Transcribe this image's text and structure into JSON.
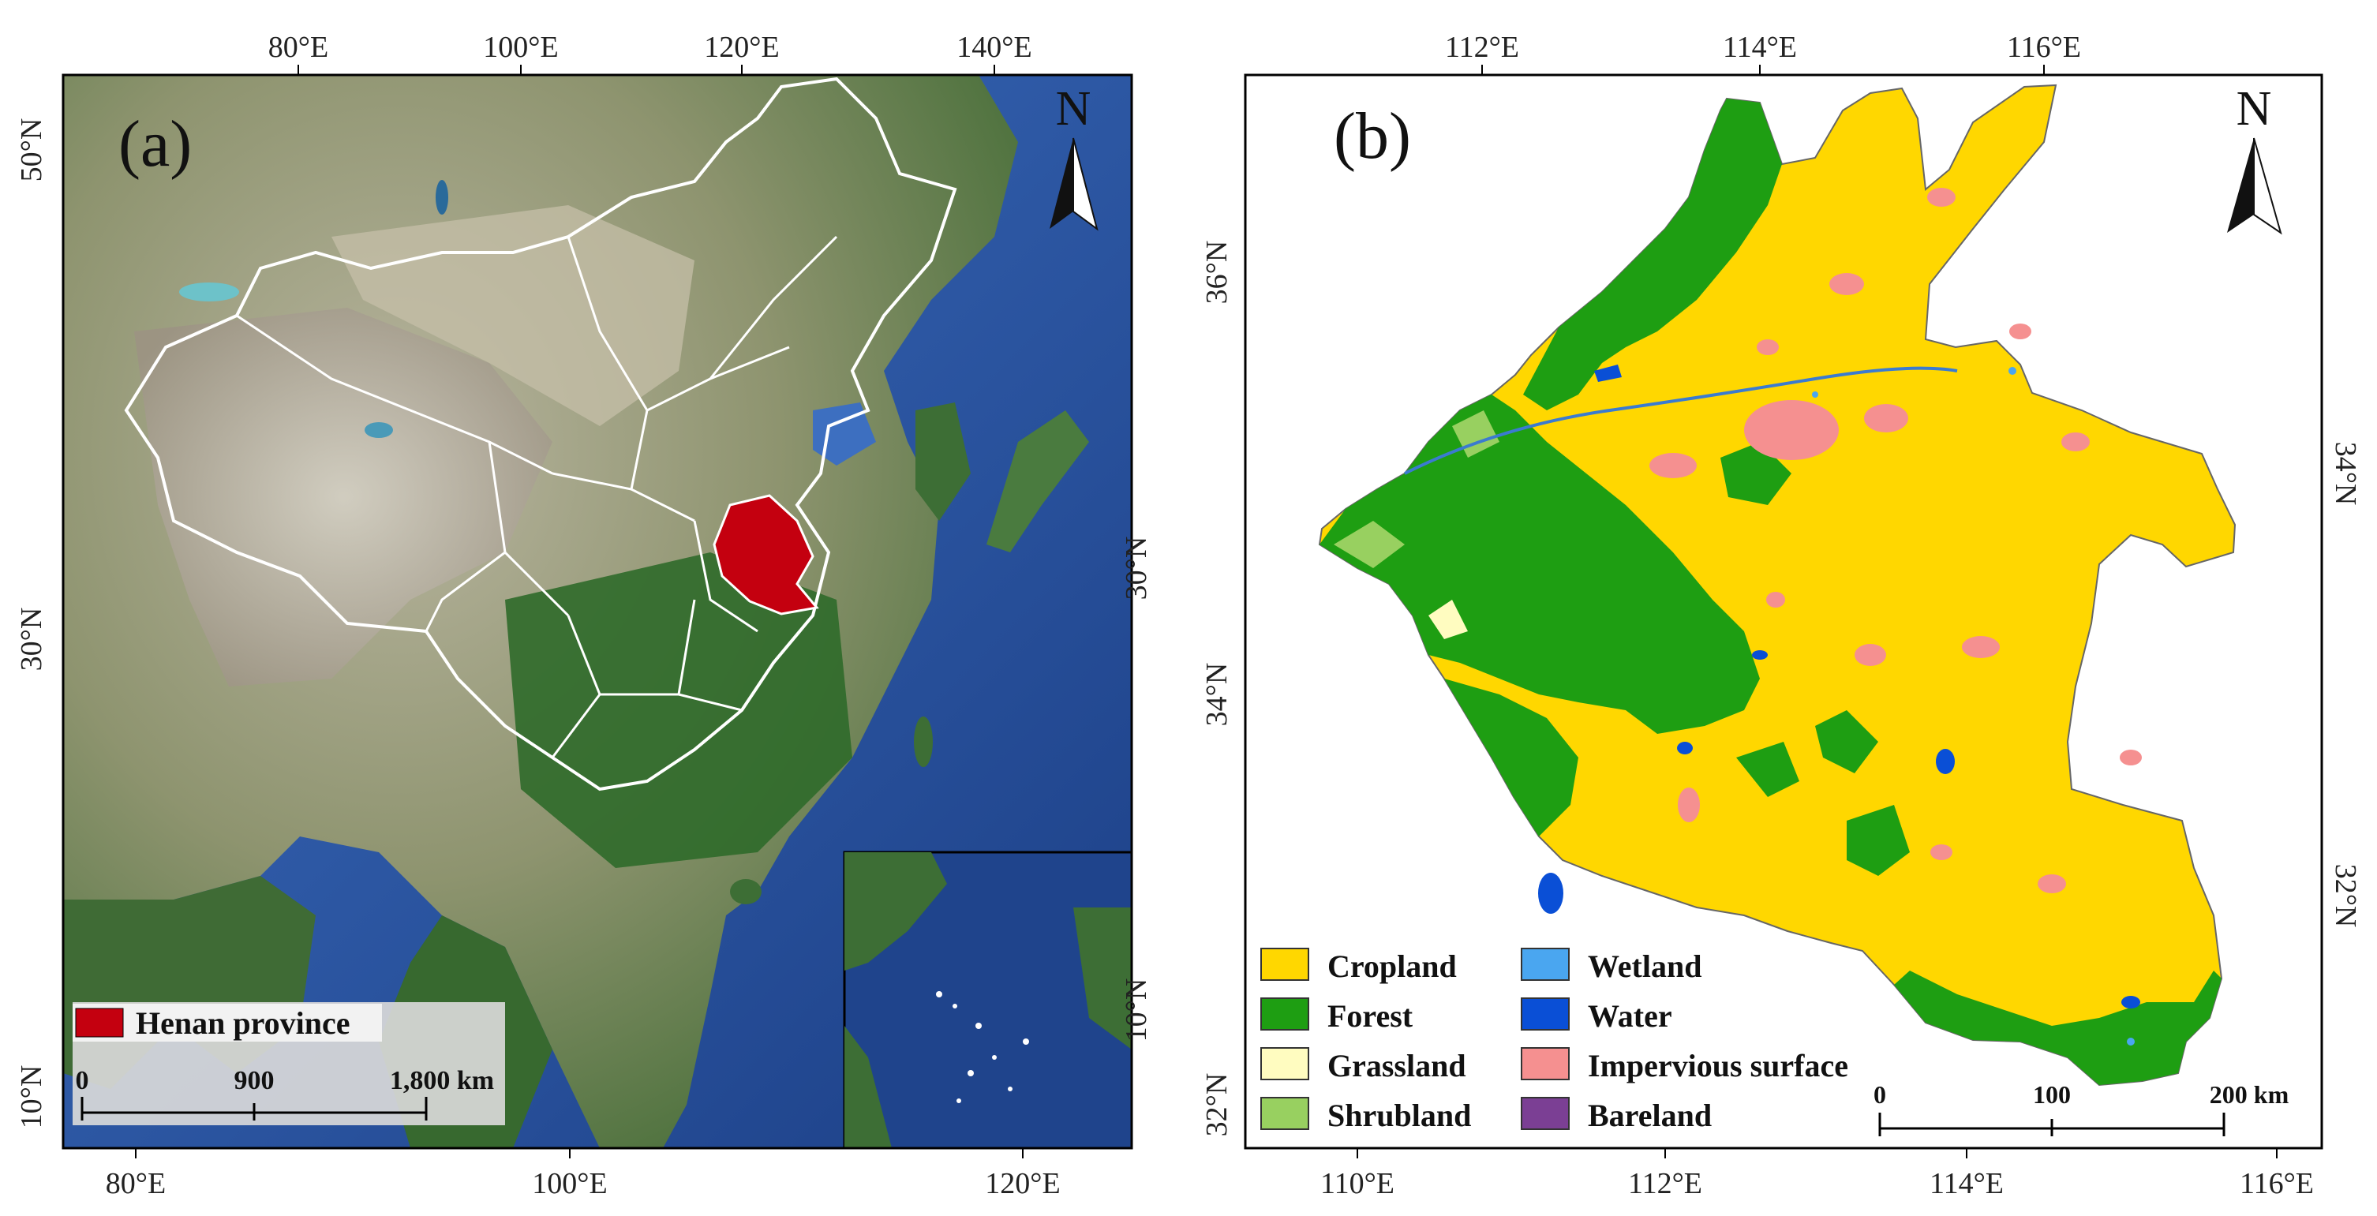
{
  "panel_a": {
    "label": "(a)",
    "north": "N",
    "top_ticks": [
      "80°E",
      "100°E",
      "120°E",
      "140°E"
    ],
    "bottom_ticks": [
      "80°E",
      "100°E",
      "120°E"
    ],
    "left_ticks": [
      "50°N",
      "30°N",
      "10°N"
    ],
    "inner_ticks": [
      "30°N",
      "10°N"
    ],
    "legend": {
      "label": "Henan province",
      "color": "#c4000f"
    },
    "scalebar": {
      "ticks": [
        "0",
        "900",
        "1,800 km"
      ]
    }
  },
  "panel_b": {
    "label": "(b)",
    "north": "N",
    "top_ticks": [
      "112°E",
      "114°E",
      "116°E"
    ],
    "bottom_ticks": [
      "110°E",
      "112°E",
      "114°E",
      "116°E"
    ],
    "left_ticks": [
      "36°N",
      "34°N",
      "32°N"
    ],
    "right_ticks": [
      "34°N",
      "32°N"
    ],
    "legend": [
      {
        "label": "Cropland",
        "color": "#ffd700"
      },
      {
        "label": "Wetland",
        "color": "#4aa6f0"
      },
      {
        "label": "Forest",
        "color": "#1e9e12"
      },
      {
        "label": "Water",
        "color": "#0a4fd6"
      },
      {
        "label": "Grassland",
        "color": "#fffcc0"
      },
      {
        "label": "Impervious surface",
        "color": "#f59090"
      },
      {
        "label": "Shrubland",
        "color": "#98d060"
      },
      {
        "label": "Bareland",
        "color": "#7b3f94"
      }
    ],
    "scalebar": {
      "ticks": [
        "0",
        "100",
        "200 km"
      ]
    }
  }
}
